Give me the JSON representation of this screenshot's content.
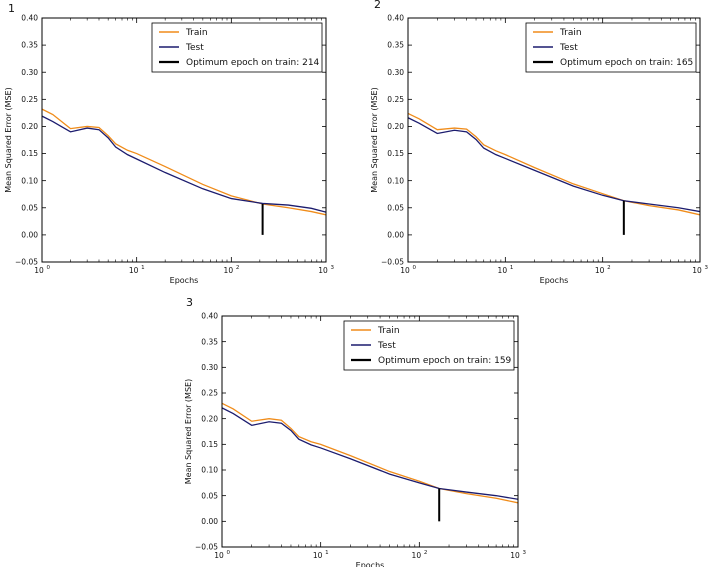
{
  "figure": {
    "description_free": true
  },
  "chart_data": [
    {
      "type": "line",
      "panel_label": "1",
      "xscale": "log",
      "xlabel": "Epochs",
      "ylabel": "Mean Squared Error (MSE)",
      "xlim": [
        1,
        1000
      ],
      "ylim": [
        -0.05,
        0.4
      ],
      "yticks": [
        "0.40",
        "0.35",
        "0.30",
        "0.25",
        "0.20",
        "0.15",
        "0.10",
        "0.05",
        "0.00",
        "−0.05"
      ],
      "xticks": [
        {
          "base": "10",
          "exp": "0"
        },
        {
          "base": "10",
          "exp": "1"
        },
        {
          "base": "10",
          "exp": "2"
        },
        {
          "base": "10",
          "exp": "3"
        }
      ],
      "legend_position": "top-right",
      "optimum_epoch": 214,
      "optimum_height": 0.057,
      "series": [
        {
          "name": "Train",
          "color": "#f08c1a",
          "x": [
            1,
            1.3,
            2,
            3,
            4,
            5,
            6,
            8,
            10,
            20,
            50,
            100,
            214,
            400,
            700,
            1000
          ],
          "y": [
            0.232,
            0.222,
            0.196,
            0.2,
            0.198,
            0.183,
            0.168,
            0.156,
            0.15,
            0.126,
            0.093,
            0.072,
            0.057,
            0.05,
            0.043,
            0.037
          ]
        },
        {
          "name": "Test",
          "color": "#1c1c6e",
          "x": [
            1,
            1.3,
            2,
            3,
            4,
            5,
            6,
            8,
            10,
            20,
            50,
            100,
            214,
            400,
            700,
            1000
          ],
          "y": [
            0.219,
            0.209,
            0.19,
            0.197,
            0.194,
            0.179,
            0.162,
            0.148,
            0.14,
            0.115,
            0.085,
            0.067,
            0.058,
            0.055,
            0.049,
            0.042
          ]
        },
        {
          "name": "Optimum epoch on train: 214",
          "color": "#000000",
          "kind": "marker"
        }
      ]
    },
    {
      "type": "line",
      "panel_label": "2",
      "xscale": "log",
      "xlabel": "Epochs",
      "ylabel": "Mean Squared Error (MSE)",
      "xlim": [
        1,
        1000
      ],
      "ylim": [
        -0.05,
        0.4
      ],
      "yticks": [
        "0.40",
        "0.35",
        "0.30",
        "0.25",
        "0.20",
        "0.15",
        "0.10",
        "0.05",
        "0.00",
        "−0.05"
      ],
      "xticks": [
        {
          "base": "10",
          "exp": "0"
        },
        {
          "base": "10",
          "exp": "1"
        },
        {
          "base": "10",
          "exp": "2"
        },
        {
          "base": "10",
          "exp": "3"
        }
      ],
      "legend_position": "top-right",
      "optimum_epoch": 165,
      "optimum_height": 0.063,
      "series": [
        {
          "name": "Train",
          "color": "#f08c1a",
          "x": [
            1,
            1.3,
            2,
            3,
            4,
            5,
            6,
            8,
            10,
            20,
            50,
            100,
            165,
            300,
            600,
            1000
          ],
          "y": [
            0.224,
            0.214,
            0.194,
            0.197,
            0.195,
            0.181,
            0.166,
            0.155,
            0.148,
            0.124,
            0.094,
            0.076,
            0.063,
            0.054,
            0.046,
            0.037
          ]
        },
        {
          "name": "Test",
          "color": "#1c1c6e",
          "x": [
            1,
            1.3,
            2,
            3,
            4,
            5,
            6,
            8,
            10,
            20,
            50,
            100,
            165,
            300,
            600,
            1000
          ],
          "y": [
            0.216,
            0.206,
            0.187,
            0.193,
            0.19,
            0.176,
            0.16,
            0.148,
            0.141,
            0.119,
            0.09,
            0.073,
            0.063,
            0.057,
            0.05,
            0.043
          ]
        },
        {
          "name": "Optimum epoch on train: 165",
          "color": "#000000",
          "kind": "marker"
        }
      ]
    },
    {
      "type": "line",
      "panel_label": "3",
      "xscale": "log",
      "xlabel": "Epochs",
      "ylabel": "Mean Squared Error (MSE)",
      "xlim": [
        1,
        1000
      ],
      "ylim": [
        -0.05,
        0.4
      ],
      "yticks": [
        "0.40",
        "0.35",
        "0.30",
        "0.25",
        "0.20",
        "0.15",
        "0.10",
        "0.05",
        "0.00",
        "−0.05"
      ],
      "xticks": [
        {
          "base": "10",
          "exp": "0"
        },
        {
          "base": "10",
          "exp": "1"
        },
        {
          "base": "10",
          "exp": "2"
        },
        {
          "base": "10",
          "exp": "3"
        }
      ],
      "legend_position": "top-right",
      "optimum_epoch": 159,
      "optimum_height": 0.064,
      "series": [
        {
          "name": "Train",
          "color": "#f08c1a",
          "x": [
            1,
            1.3,
            2,
            3,
            4,
            5,
            6,
            8,
            10,
            20,
            50,
            100,
            159,
            300,
            600,
            1000
          ],
          "y": [
            0.23,
            0.219,
            0.195,
            0.2,
            0.197,
            0.181,
            0.165,
            0.155,
            0.15,
            0.128,
            0.097,
            0.078,
            0.064,
            0.054,
            0.045,
            0.036
          ]
        },
        {
          "name": "Test",
          "color": "#1c1c6e",
          "x": [
            1,
            1.3,
            2,
            3,
            4,
            5,
            6,
            8,
            10,
            20,
            50,
            100,
            159,
            300,
            600,
            1000
          ],
          "y": [
            0.221,
            0.21,
            0.187,
            0.194,
            0.191,
            0.177,
            0.16,
            0.149,
            0.143,
            0.122,
            0.092,
            0.075,
            0.064,
            0.057,
            0.05,
            0.043
          ]
        },
        {
          "name": "Optimum epoch on train: 159",
          "color": "#000000",
          "kind": "marker"
        }
      ]
    }
  ]
}
